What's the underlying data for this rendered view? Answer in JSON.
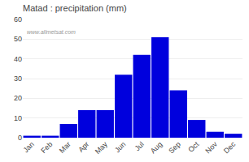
{
  "chart_data": {
    "type": "bar",
    "title": "Matad : precipitation (mm)",
    "categories": [
      "Jan",
      "Feb",
      "Mar",
      "Apr",
      "May",
      "Jun",
      "Jul",
      "Aug",
      "Sep",
      "Oct",
      "Nov",
      "Dec"
    ],
    "values": [
      1,
      1,
      7,
      14,
      14,
      32,
      42,
      51,
      24,
      9,
      3,
      2
    ],
    "color": "#0000dd",
    "ylim": [
      0,
      60
    ],
    "yticks": [
      0,
      10,
      20,
      30,
      40,
      50,
      60
    ],
    "grid": true,
    "annotations": [
      "www.allmetsat.com"
    ]
  }
}
